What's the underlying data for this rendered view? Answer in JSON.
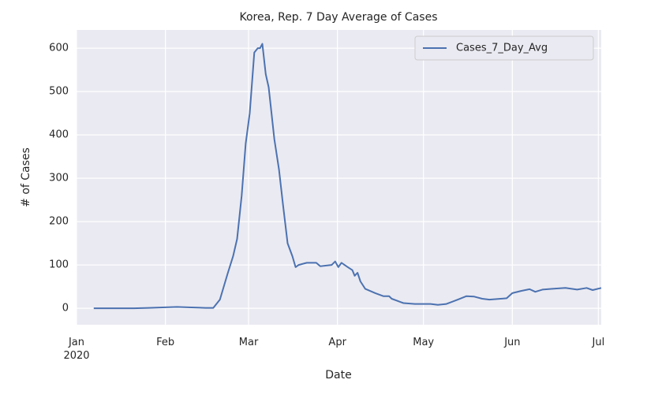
{
  "chart_data": {
    "type": "line",
    "title": "Korea, Rep. 7 Day Average of Cases",
    "xlabel": "Date",
    "ylabel": "# of Cases",
    "x": [
      6,
      10,
      15,
      20,
      25,
      30,
      35,
      40,
      45,
      47.7,
      50,
      52.7,
      54.6,
      56,
      57.6,
      59,
      60.4,
      62,
      63.2,
      64,
      64.8,
      66,
      67,
      69,
      70.6,
      72,
      73.6,
      75.3,
      76.4,
      77.5,
      80.3,
      83.6,
      85,
      89,
      90.2,
      91.3,
      92.4,
      94.6,
      96.2,
      97,
      98,
      99,
      100.7,
      104.2,
      107,
      109,
      109.9,
      114,
      118,
      123.5,
      126,
      129,
      133,
      136,
      138.7,
      141.5,
      144,
      150,
      152,
      155,
      158,
      160,
      162.5,
      166,
      170.5,
      174.6,
      177.9,
      180,
      183
    ],
    "series": [
      {
        "name": "Cases_7_Day_Avg",
        "color": "#4c72b0",
        "values": [
          0,
          0,
          0,
          0,
          1,
          2,
          3,
          2,
          1,
          1,
          20,
          80,
          120,
          160,
          260,
          380,
          450,
          590,
          600,
          600,
          610,
          540,
          510,
          390,
          320,
          240,
          150,
          120,
          95,
          100,
          105,
          105,
          97,
          100,
          108,
          95,
          105,
          95,
          88,
          75,
          82,
          62,
          45,
          35,
          28,
          28,
          22,
          12,
          10,
          10,
          8,
          10,
          20,
          28,
          27,
          22,
          20,
          23,
          35,
          40,
          44,
          38,
          43,
          45,
          47,
          43,
          47,
          42,
          47
        ]
      }
    ],
    "xlim": [
      0,
      183
    ],
    "ylim": [
      -38,
      642
    ],
    "xticks": [
      {
        "value": 0,
        "label": "Jan\n2020"
      },
      {
        "value": 31,
        "label": "Feb"
      },
      {
        "value": 60,
        "label": "Mar"
      },
      {
        "value": 91,
        "label": "Apr"
      },
      {
        "value": 121,
        "label": "May"
      },
      {
        "value": 152,
        "label": "Jun"
      },
      {
        "value": 182,
        "label": "Jul"
      }
    ],
    "yticks": [
      0,
      100,
      200,
      300,
      400,
      500,
      600
    ],
    "grid": true,
    "legend": "upper right",
    "background": "#eaeaf2"
  }
}
